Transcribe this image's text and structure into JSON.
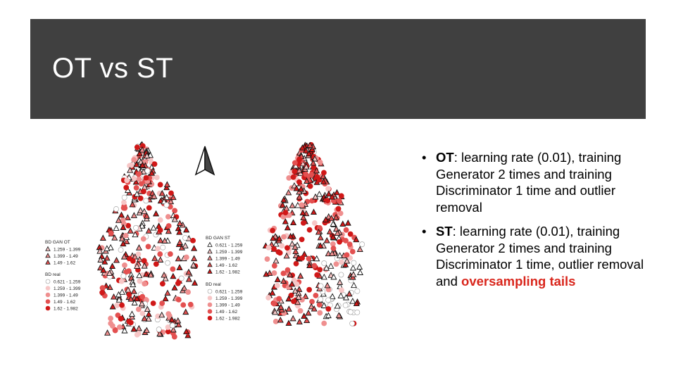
{
  "slide": {
    "title": "OT vs ST"
  },
  "bullets": [
    {
      "term": "OT",
      "text": ": learning rate (0.01), training Generator 2 times and training Discriminator 1 time and outlier removal",
      "highlight": ""
    },
    {
      "term": "ST",
      "text": ": learning rate (0.01), training Generator 2 times and training Discriminator 1 time, outlier removal and ",
      "highlight": "oversampling tails"
    }
  ],
  "maps": {
    "left": {
      "legend_gan_title": "BD GAN OT",
      "legend_gan_ranges": [
        "1.259 - 1.399",
        "1.399 - 1.49",
        "1.49 - 1.62"
      ],
      "legend_real_title": "BD real",
      "legend_real_ranges": [
        "0.621 - 1.259",
        "1.259 - 1.399",
        "1.399 - 1.49",
        "1.49 - 1.62",
        "1.62 - 1.982"
      ]
    },
    "right": {
      "legend_gan_title": "BD GAN ST",
      "legend_gan_ranges": [
        "0.621 - 1.259",
        "1.259 - 1.399",
        "1.399 - 1.49",
        "1.49 - 1.62",
        "1.62 - 1.982"
      ],
      "legend_real_title": "BD real",
      "legend_real_ranges": [
        "0.621 - 1.259",
        "1.259 - 1.399",
        "1.399 - 1.49",
        "1.49 - 1.62",
        "1.62 - 1.982"
      ]
    },
    "class_colors": [
      "#ffffff",
      "#f7c6c6",
      "#ef8f8f",
      "#e35050",
      "#d01818"
    ],
    "north_arrow_icon": "north-arrow-icon"
  }
}
